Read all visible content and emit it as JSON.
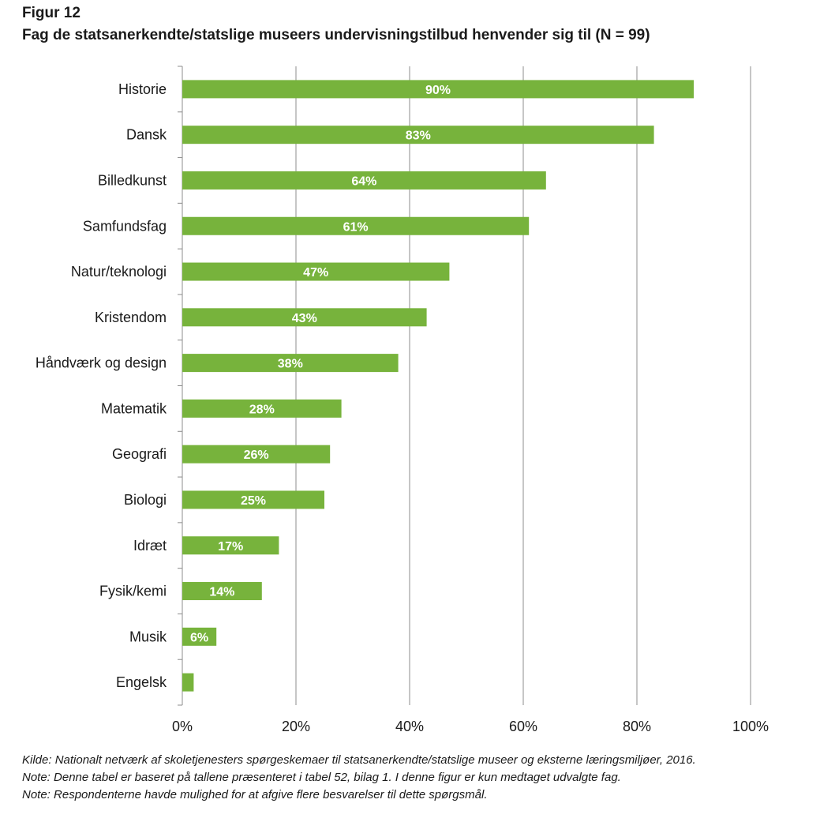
{
  "figure": {
    "label": "Figur 12",
    "title": "Fag de statsanerkendte/statslige museers undervisningstilbud henvender sig til (N = 99)"
  },
  "chart_data": {
    "type": "bar",
    "orientation": "horizontal",
    "categories": [
      "Historie",
      "Dansk",
      "Billedkunst",
      "Samfundsfag",
      "Natur/teknologi",
      "Kristendom",
      "Håndværk og design",
      "Matematik",
      "Geografi",
      "Biologi",
      "Idræt",
      "Fysik/kemi",
      "Musik",
      "Engelsk"
    ],
    "values": [
      90,
      83,
      64,
      61,
      47,
      43,
      38,
      28,
      26,
      25,
      17,
      14,
      6,
      2
    ],
    "data_labels": [
      "90%",
      "83%",
      "64%",
      "61%",
      "47%",
      "43%",
      "38%",
      "28%",
      "26%",
      "25%",
      "17%",
      "14%",
      "6%",
      ""
    ],
    "x_ticks": [
      0,
      20,
      40,
      60,
      80,
      100
    ],
    "x_tick_labels": [
      "0%",
      "20%",
      "40%",
      "60%",
      "80%",
      "100%"
    ],
    "xlim": [
      0,
      100
    ],
    "grid": "vertical",
    "bar_color": "#77b33c",
    "label_color": "#ffffff",
    "grid_color": "#8c8c8c"
  },
  "notes": [
    "Kilde: Nationalt netværk af skoletjenesters spørgeskemaer til statsanerkendte/statslige museer og eksterne læringsmiljøer, 2016.",
    "Note: Denne tabel er baseret på tallene præsenteret i tabel 52, bilag 1. I denne figur er kun medtaget udvalgte fag.",
    "Note: Respondenterne havde mulighed for at afgive flere besvarelser til dette spørgsmål."
  ]
}
